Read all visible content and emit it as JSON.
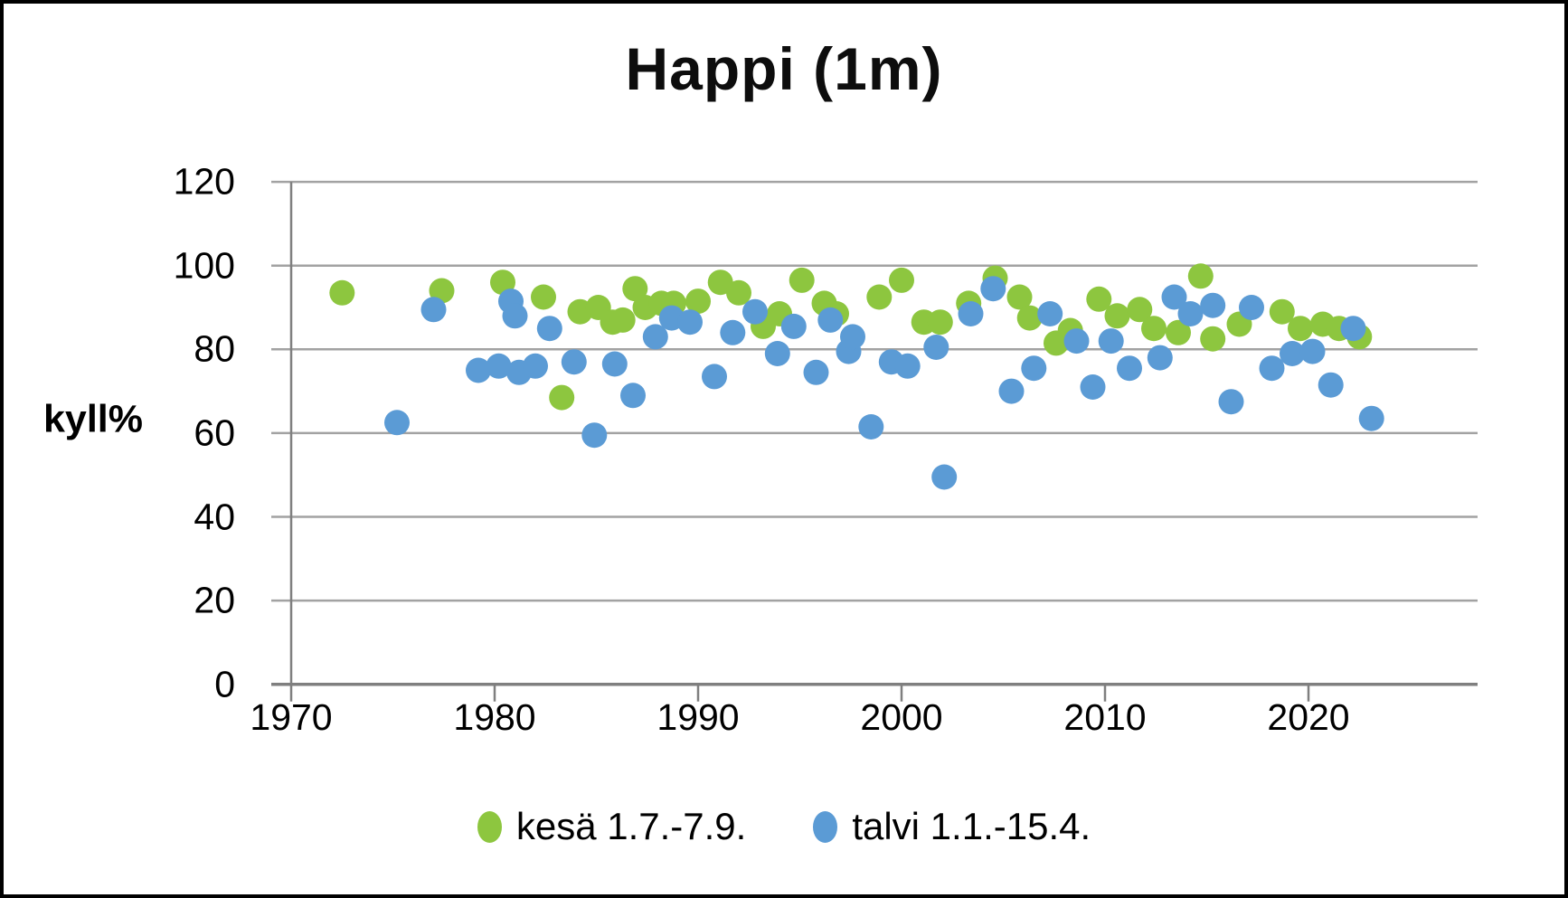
{
  "title": "Happi (1m)",
  "y_axis": {
    "label": "kyll%",
    "ticks": [
      0,
      20,
      40,
      60,
      80,
      100,
      120
    ]
  },
  "x_axis": {
    "ticks": [
      1970,
      1980,
      1990,
      2000,
      2010,
      2020
    ]
  },
  "legend": [
    {
      "label": "kesä 1.7.-7.9.",
      "color": "#8dc63f"
    },
    {
      "label": "talvi 1.1.-15.4.",
      "color": "#5b9bd5"
    }
  ],
  "chart_data": {
    "type": "scatter",
    "title": "Happi (1m)",
    "xlabel": "",
    "ylabel": "kyll%",
    "xlim": [
      1970,
      2028
    ],
    "ylim": [
      0,
      120
    ],
    "grid": "horizontal",
    "legend_position": "bottom",
    "series": [
      {
        "name": "kesä 1.7.-7.9.",
        "color": "#8dc63f",
        "points": [
          [
            1972.5,
            93.5
          ],
          [
            1977.4,
            94
          ],
          [
            1980.4,
            96
          ],
          [
            1982.4,
            92.5
          ],
          [
            1983.3,
            68.5
          ],
          [
            1984.2,
            89
          ],
          [
            1985.1,
            90
          ],
          [
            1985.8,
            86.5
          ],
          [
            1986.3,
            87
          ],
          [
            1986.9,
            94.5
          ],
          [
            1987.4,
            90
          ],
          [
            1988.2,
            91
          ],
          [
            1988.8,
            91
          ],
          [
            1990.0,
            91.5
          ],
          [
            1991.1,
            96
          ],
          [
            1992.0,
            93.5
          ],
          [
            1993.2,
            85.5
          ],
          [
            1994.0,
            88.5
          ],
          [
            1995.1,
            96.5
          ],
          [
            1996.2,
            91
          ],
          [
            1996.8,
            88.5
          ],
          [
            1998.9,
            92.5
          ],
          [
            2000.0,
            96.5
          ],
          [
            2001.1,
            86.5
          ],
          [
            2001.9,
            86.5
          ],
          [
            2003.3,
            91
          ],
          [
            2004.6,
            97
          ],
          [
            2005.8,
            92.5
          ],
          [
            2006.3,
            87.5
          ],
          [
            2007.6,
            81.5
          ],
          [
            2008.3,
            84.5
          ],
          [
            2009.7,
            92
          ],
          [
            2010.6,
            88
          ],
          [
            2011.7,
            89.5
          ],
          [
            2012.4,
            85
          ],
          [
            2013.6,
            84
          ],
          [
            2014.7,
            97.5
          ],
          [
            2015.3,
            82.5
          ],
          [
            2016.6,
            86
          ],
          [
            2018.7,
            89
          ],
          [
            2019.6,
            85
          ],
          [
            2020.7,
            86
          ],
          [
            2021.5,
            85
          ],
          [
            2022.5,
            83
          ]
        ]
      },
      {
        "name": "talvi 1.1.-15.4.",
        "color": "#5b9bd5",
        "points": [
          [
            1975.2,
            62.5
          ],
          [
            1977.0,
            89.5
          ],
          [
            1979.2,
            75
          ],
          [
            1980.2,
            76
          ],
          [
            1980.8,
            91.5
          ],
          [
            1981.0,
            88
          ],
          [
            1981.2,
            74.5
          ],
          [
            1982.0,
            76
          ],
          [
            1982.7,
            85
          ],
          [
            1983.9,
            77
          ],
          [
            1984.9,
            59.5
          ],
          [
            1985.9,
            76.5
          ],
          [
            1986.8,
            69
          ],
          [
            1987.9,
            83
          ],
          [
            1988.7,
            87.5
          ],
          [
            1989.6,
            86.5
          ],
          [
            1990.8,
            73.5
          ],
          [
            1991.7,
            84
          ],
          [
            1992.8,
            89
          ],
          [
            1993.9,
            79
          ],
          [
            1994.7,
            85.5
          ],
          [
            1995.8,
            74.5
          ],
          [
            1996.5,
            87
          ],
          [
            1997.4,
            79.5
          ],
          [
            1997.6,
            83
          ],
          [
            1998.5,
            61.5
          ],
          [
            1999.5,
            77
          ],
          [
            2000.3,
            76
          ],
          [
            2001.7,
            80.5
          ],
          [
            2002.1,
            49.5
          ],
          [
            2003.4,
            88.5
          ],
          [
            2004.5,
            94.5
          ],
          [
            2005.4,
            70
          ],
          [
            2006.5,
            75.5
          ],
          [
            2007.3,
            88.5
          ],
          [
            2008.6,
            82
          ],
          [
            2009.4,
            71
          ],
          [
            2010.3,
            82
          ],
          [
            2011.2,
            75.5
          ],
          [
            2012.7,
            78
          ],
          [
            2013.4,
            92.5
          ],
          [
            2014.2,
            88.5
          ],
          [
            2015.3,
            90.5
          ],
          [
            2016.2,
            67.5
          ],
          [
            2017.2,
            90
          ],
          [
            2018.2,
            75.5
          ],
          [
            2019.2,
            79
          ],
          [
            2020.2,
            79.5
          ],
          [
            2021.1,
            71.5
          ],
          [
            2022.2,
            85
          ],
          [
            2023.1,
            63.5
          ]
        ]
      }
    ]
  }
}
